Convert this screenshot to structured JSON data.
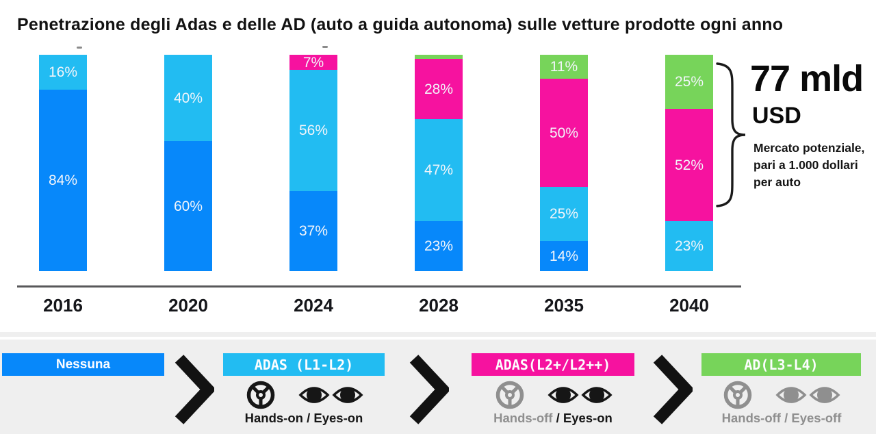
{
  "title": "Penetrazione degli Adas e delle AD (auto a guida autonoma) sulle vetture prodotte ogni anno",
  "chart_data": {
    "type": "bar",
    "stacked": true,
    "unit": "%",
    "ylim": [
      0,
      100
    ],
    "grid": false,
    "categories": [
      "2016",
      "2020",
      "2024",
      "2028",
      "2035",
      "2040"
    ],
    "series": [
      {
        "name": "Nessuna",
        "color": "blue",
        "values": [
          84,
          60,
          37,
          23,
          14,
          0
        ]
      },
      {
        "name": "ADAS (L1-L2)",
        "color": "cyan",
        "values": [
          16,
          40,
          56,
          47,
          25,
          23
        ]
      },
      {
        "name": "ADAS (L2+/L2++)",
        "color": "pink",
        "values": [
          0,
          0,
          7,
          28,
          50,
          52
        ]
      },
      {
        "name": "AD (L3-L4)",
        "color": "green",
        "values": [
          0,
          0,
          0,
          2,
          11,
          25
        ]
      }
    ],
    "label_format": "{value}%",
    "min_label_value": 5
  },
  "annotation": {
    "value": "77 mld",
    "currency": "USD",
    "note_lines": [
      "Mercato potenziale,",
      "pari a 1.000 dollari",
      "per auto"
    ],
    "note": "Mercato potenziale, pari a 1.000 dollari per auto"
  },
  "legend": {
    "separator": " / ",
    "stages": [
      {
        "label": "Nessuna",
        "color": "blue"
      },
      {
        "label": "ADAS (L1-L2)",
        "color": "cyan",
        "hands": "Hands-on",
        "eyes": "Eyes-on"
      },
      {
        "label": "ADAS(L2+/L2++)",
        "color": "pink",
        "hands": "Hands-off",
        "eyes": "Eyes-on"
      },
      {
        "label": "AD(L3-L4)",
        "color": "green",
        "hands": "Hands-off",
        "eyes": "Eyes-off"
      }
    ]
  },
  "colors": {
    "blue": "#0788FA",
    "cyan": "#22BCF2",
    "pink": "#F6129F",
    "green": "#77D45A",
    "muted": "#8F8F8F",
    "label_text": "#F2F5FA",
    "axis": "#58585A",
    "panel": "#EFEFEF"
  }
}
